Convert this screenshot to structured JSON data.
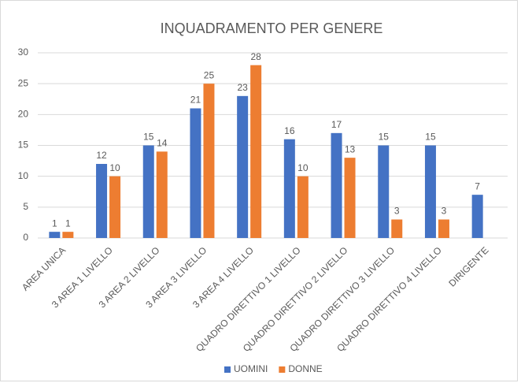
{
  "chart_data": {
    "type": "bar",
    "title": "INQUADRAMENTO PER GENERE",
    "categories": [
      "AREA UNICA",
      "3 AREA 1 LIVELLO",
      "3 AREA 2 LIVELLO",
      "3 AREA 3 LIVELLO",
      "3 AREA 4 LIVELLO",
      "QUADRO DIRETTIVO 1 LIVELLO",
      "QUADRO DIRETTIVO 2 LIVELLO",
      "QUADRO DIRETTIVO 3 LIVELLO",
      "QUADRO DIRETTIVO 4 LIVELLO",
      "DIRIGENTE"
    ],
    "series": [
      {
        "name": "UOMINI",
        "color": "#4472c4",
        "values": [
          1,
          12,
          15,
          21,
          23,
          16,
          17,
          15,
          15,
          7
        ]
      },
      {
        "name": "DONNE",
        "color": "#ed7d31",
        "values": [
          1,
          10,
          14,
          25,
          28,
          10,
          13,
          3,
          3,
          null
        ]
      }
    ],
    "ylim": [
      0,
      30
    ],
    "yticks": [
      0,
      5,
      10,
      15,
      20,
      25,
      30
    ],
    "grid": true,
    "legend": "bottom"
  }
}
